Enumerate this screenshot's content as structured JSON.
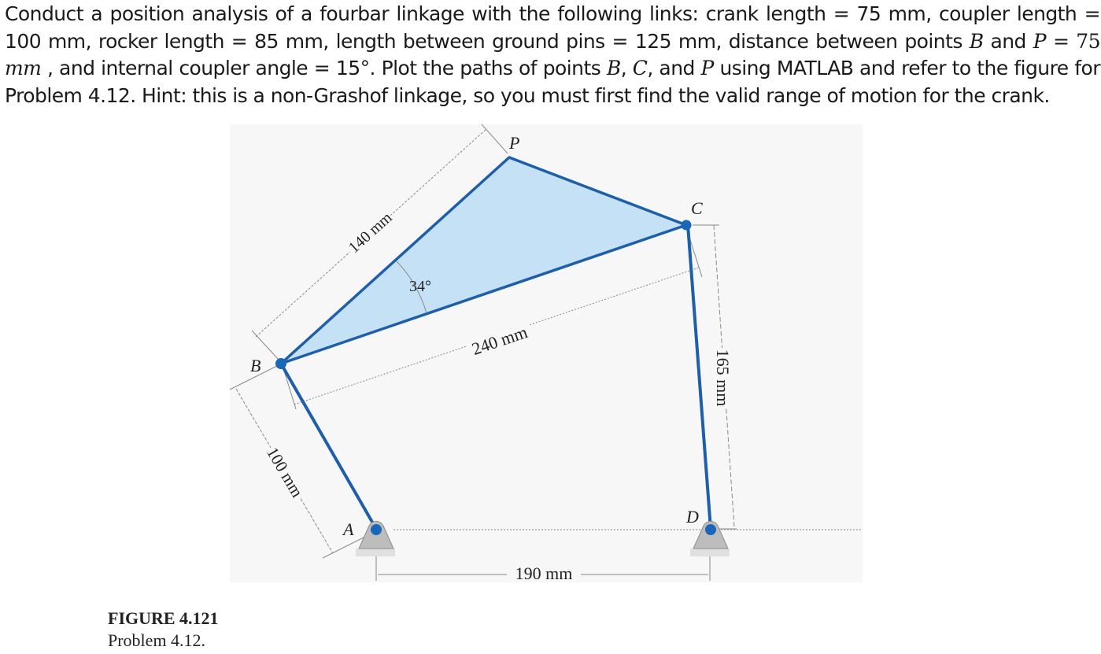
{
  "problem": {
    "part1": "Conduct a position analysis of a fourbar linkage with the following links: crank length = 75 mm, coupler length = 100 mm, rocker length = 85 mm, length between ground pins = 125 mm, distance between points ",
    "var_B": "B",
    "and_text": " and ",
    "var_P": "P",
    "eq_text": " = 75 ",
    "unit_mm": "mm",
    "part2": " , and internal coupler angle = 15°. Plot the paths of points ",
    "var_B2": "B",
    "comma1": ", ",
    "var_C": "C",
    "comma2": ", and ",
    "var_P2": "P",
    "part3": " using MATLAB and refer to the figure for Problem 4.12. Hint: this is a non-Grashof linkage, so you must first find the valid range of motion for the crank."
  },
  "figure": {
    "labels": {
      "point_P": "P",
      "point_C": "C",
      "point_B": "B",
      "point_A": "A",
      "point_D": "D",
      "dim_140": "140 mm",
      "dim_240": "240 mm",
      "dim_100": "100 mm",
      "dim_165": "165 mm",
      "dim_190": "190 mm",
      "angle_34": "34°"
    },
    "colors": {
      "link": "#1f5fa8",
      "coupler_fill": "#c4e1f6",
      "pin": "#1a66b8",
      "ground": "#bdbdbd",
      "dimension": "#8a8a8a"
    }
  },
  "caption": {
    "number": "FIGURE 4.121",
    "subtitle": "Problem 4.12."
  }
}
